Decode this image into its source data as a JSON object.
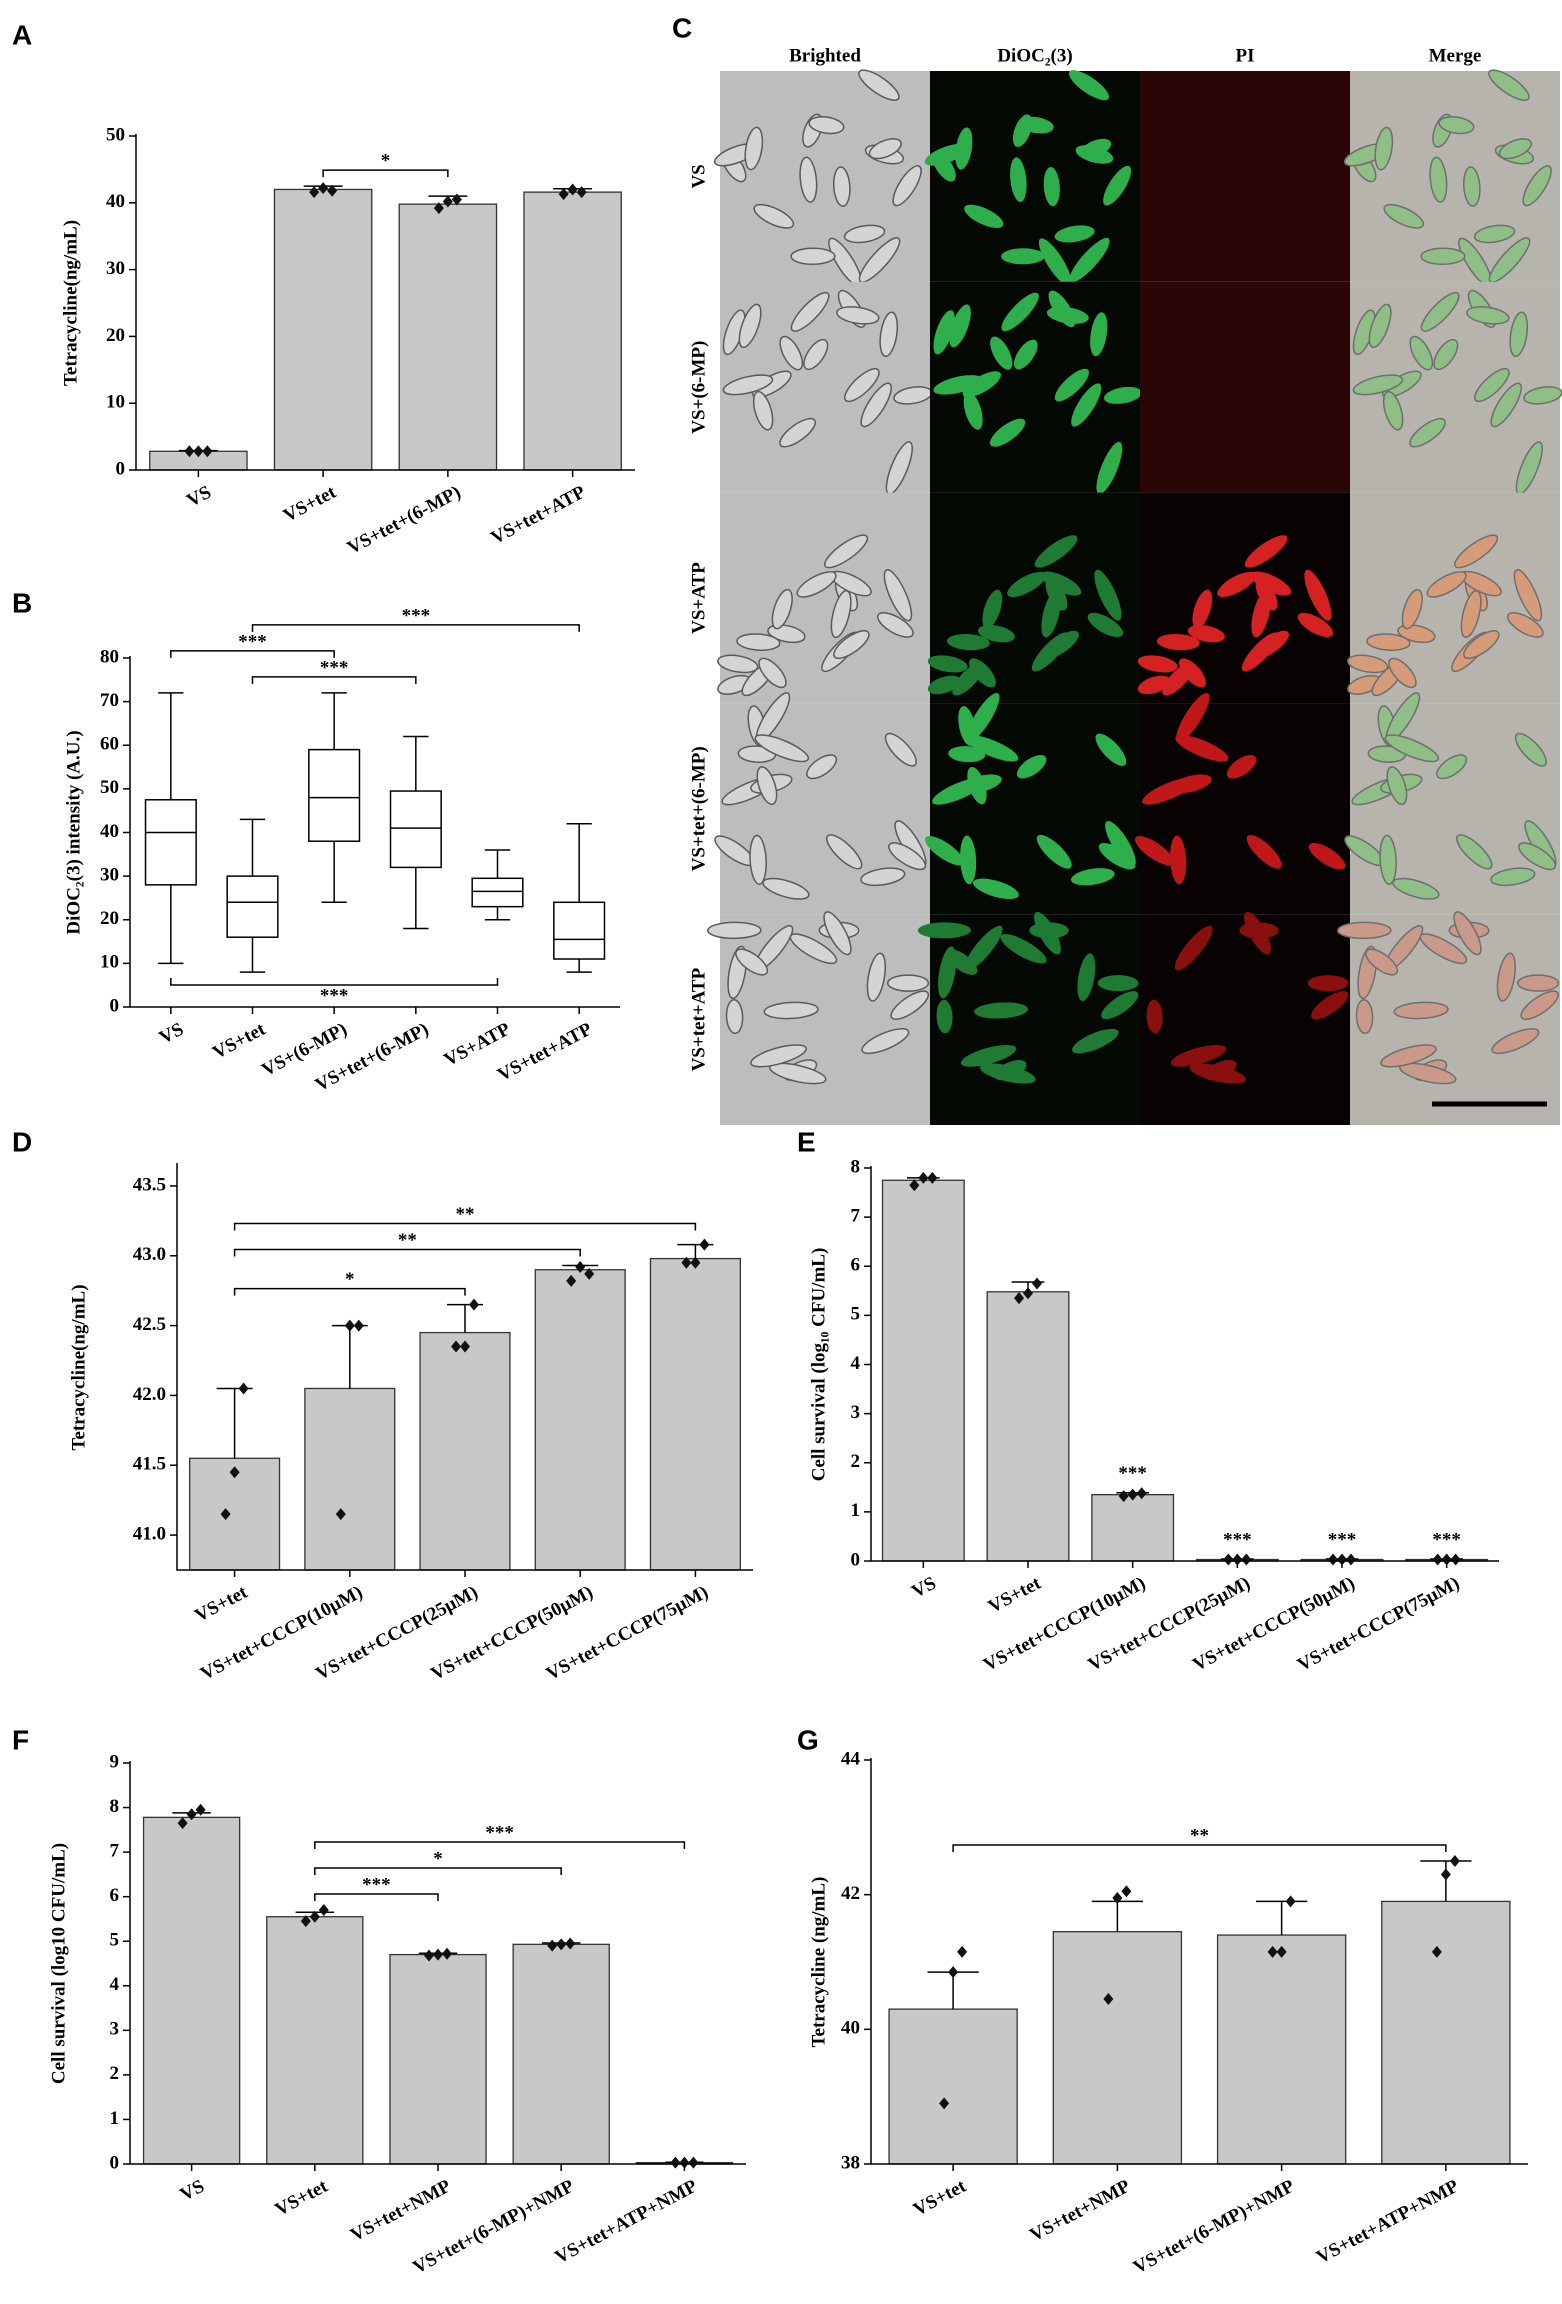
{
  "chart_data": [
    {
      "type": "bar",
      "label": "A",
      "ylabel": "Tetracycline(ng/mL)",
      "categories": [
        "VS",
        "VS+tet",
        "VS+tet+(6-MP)",
        "VS+tet+ATP"
      ],
      "values": [
        2.8,
        42,
        39.8,
        41.6
      ],
      "errors": [
        0.1,
        0.5,
        1.2,
        0.5
      ],
      "points": [
        [
          2.8,
          2.8,
          2.8
        ],
        [
          41.6,
          42.2,
          41.8
        ],
        [
          39.2,
          40.2,
          40.5
        ],
        [
          41.3,
          42.0,
          41.6
        ]
      ],
      "color": "#c8c8c8",
      "ylim": [
        0,
        50
      ],
      "yticks": [
        0,
        10,
        20,
        30,
        40,
        50
      ],
      "brackets": [
        {
          "from": 1,
          "to": 2,
          "label": "*"
        }
      ]
    },
    {
      "type": "box",
      "label": "B",
      "ylabel": "DiOC₂(3) intensity (A.U.)",
      "categories": [
        "VS",
        "VS+tet",
        "VS+(6-MP)",
        "VS+tet+(6-MP)",
        "VS+ATP",
        "VS+tet+ATP"
      ],
      "whisker_low": [
        10,
        8,
        24,
        18,
        20,
        8
      ],
      "q1": [
        28,
        16,
        38,
        32,
        23,
        11
      ],
      "median": [
        40,
        24,
        48,
        41,
        26.5,
        15.5
      ],
      "q3": [
        47.5,
        30,
        59,
        49.5,
        29.5,
        24
      ],
      "whisker_high": [
        72,
        43,
        72,
        62,
        36,
        42
      ],
      "ylim": [
        0,
        80
      ],
      "yticks": [
        0,
        10,
        20,
        30,
        40,
        50,
        60,
        70,
        80
      ],
      "brackets": [
        {
          "from": 1,
          "to": 3,
          "label": "***"
        },
        {
          "from": 0,
          "to": 2,
          "label": "***"
        },
        {
          "from": 1,
          "to": 5,
          "label": "***"
        },
        {
          "from": 0,
          "to": 4,
          "label": "***",
          "side": "below"
        }
      ]
    },
    {
      "type": "bar",
      "label": "D",
      "ylabel": "Tetracycline(ng/mL)",
      "categories": [
        "VS+tet",
        "VS+tet+CCCP(10μM)",
        "VS+tet+CCCP(25μM)",
        "VS+tet+CCCP(50μM)",
        "VS+tet+CCCP(75μM)"
      ],
      "values": [
        41.55,
        42.05,
        42.45,
        42.9,
        42.98
      ],
      "errors": [
        0.5,
        0.45,
        0.2,
        0.03,
        0.1
      ],
      "points": [
        [
          41.15,
          41.45,
          42.05
        ],
        [
          41.15,
          42.5,
          42.5
        ],
        [
          42.35,
          42.35,
          42.65
        ],
        [
          42.82,
          42.92,
          42.87
        ],
        [
          42.95,
          42.95,
          43.08
        ]
      ],
      "color": "#c8c8c8",
      "ylim": [
        40.75,
        43.65
      ],
      "yticks": [
        {
          "value": 41,
          "label": "41.0"
        },
        41.5,
        {
          "value": 42,
          "label": "42.0"
        },
        42.5,
        {
          "value": 43,
          "label": "43.0"
        },
        43.5
      ],
      "brackets": [
        {
          "from": 0,
          "to": 2,
          "label": "*"
        },
        {
          "from": 0,
          "to": 3,
          "label": "**"
        },
        {
          "from": 0,
          "to": 4,
          "label": "**"
        }
      ]
    },
    {
      "type": "bar",
      "label": "E",
      "ylabel": "Cell survival (log₁₀ CFU/mL)",
      "categories": [
        "VS",
        "VS+tet",
        "VS+tet+CCCP(10μM)",
        "VS+tet+CCCP(25μM)",
        "VS+tet+CCCP(50μM)",
        "VS+tet+CCCP(75μM)"
      ],
      "values": [
        7.75,
        5.48,
        1.35,
        0.03,
        0.03,
        0.03
      ],
      "errors": [
        0.05,
        0.2,
        0.04,
        0.01,
        0.01,
        0.01
      ],
      "points": [
        [
          7.65,
          7.8,
          7.8
        ],
        [
          5.35,
          5.45,
          5.65
        ],
        [
          1.32,
          1.35,
          1.38
        ],
        [
          0.03,
          0.03,
          0.03
        ],
        [
          0.03,
          0.03,
          0.03
        ],
        [
          0.03,
          0.03,
          0.03
        ]
      ],
      "color": "#c8c8c8",
      "ylim": [
        0,
        8
      ],
      "yticks": [
        0,
        1,
        2,
        3,
        4,
        5,
        6,
        7,
        8
      ],
      "bar_labels": [
        {
          "index": 2,
          "label": "***"
        },
        {
          "index": 3,
          "label": "***"
        },
        {
          "index": 4,
          "label": "***"
        },
        {
          "index": 5,
          "label": "***"
        }
      ]
    },
    {
      "type": "bar",
      "label": "F",
      "ylabel": "Cell survival (log10 CFU/mL)",
      "categories": [
        "VS",
        "VS+tet",
        "VS+tet+NMP",
        "VS+tet+(6-MP)+NMP",
        "VS+tet+ATP+NMP"
      ],
      "values": [
        7.78,
        5.55,
        4.7,
        4.93,
        0.03
      ],
      "errors": [
        0.1,
        0.1,
        0.03,
        0.03,
        0.01
      ],
      "points": [
        [
          7.65,
          7.85,
          7.95
        ],
        [
          5.45,
          5.55,
          5.7
        ],
        [
          4.68,
          4.7,
          4.72
        ],
        [
          4.9,
          4.93,
          4.95
        ],
        [
          0.03,
          0.03,
          0.03
        ]
      ],
      "color": "#c8c8c8",
      "ylim": [
        0,
        9
      ],
      "yticks": [
        0,
        1,
        2,
        3,
        4,
        5,
        6,
        7,
        8,
        9
      ],
      "brackets": [
        {
          "from": 1,
          "to": 2,
          "label": "***"
        },
        {
          "from": 1,
          "to": 3,
          "label": "*"
        },
        {
          "from": 1,
          "to": 4,
          "label": "***"
        }
      ]
    },
    {
      "type": "bar",
      "label": "G",
      "ylabel": "Tetracycline (ng/mL)",
      "categories": [
        "VS+tet",
        "VS+tet+NMP",
        "VS+tet+(6-MP)+NMP",
        "VS+tet+ATP+NMP"
      ],
      "values": [
        40.3,
        41.45,
        41.4,
        41.9
      ],
      "errors": [
        0.55,
        0.45,
        0.5,
        0.6
      ],
      "points": [
        [
          38.9,
          40.85,
          41.15
        ],
        [
          40.45,
          41.95,
          42.05
        ],
        [
          41.15,
          41.15,
          41.9
        ],
        [
          41.15,
          42.3,
          42.5
        ]
      ],
      "color": "#c8c8c8",
      "ylim": [
        38,
        44
      ],
      "yticks": [
        38,
        40,
        42,
        44
      ],
      "brackets": [
        {
          "from": 0,
          "to": 3,
          "label": "**"
        }
      ]
    }
  ],
  "figure_c": {
    "label": "C",
    "columns": [
      "Brighted",
      "DiOC₂(3)",
      "PI",
      "Merge"
    ],
    "rows": [
      "VS",
      "VS+(6-MP)",
      "VS+ATP",
      "VS+tet+(6-MP)",
      "VS+tet+ATP"
    ]
  }
}
